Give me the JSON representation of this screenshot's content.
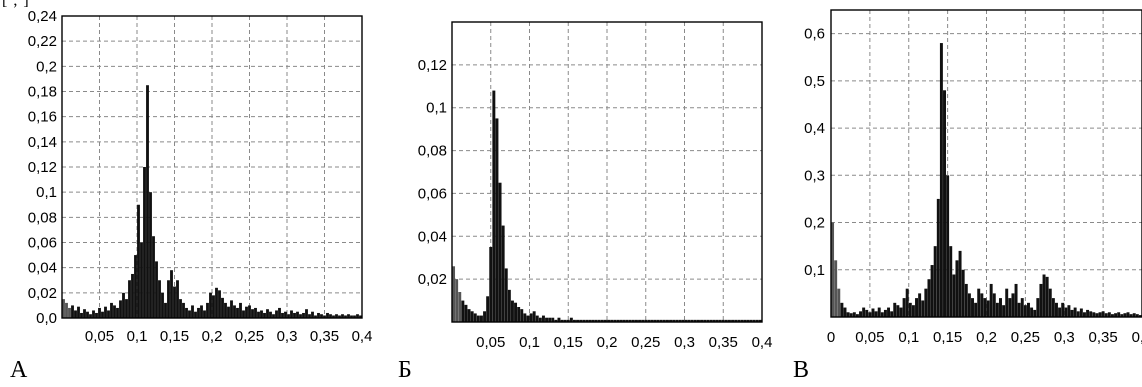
{
  "header_fragment": "[  ,  ]",
  "chart_data": [
    {
      "type": "bar",
      "panel_label": "А",
      "title": "",
      "xlabel": "",
      "ylabel": "",
      "xlim": [
        0,
        0.4
      ],
      "ylim": [
        0,
        0.24
      ],
      "grid": true,
      "x_ticks": [
        0.05,
        0.1,
        0.15,
        0.2,
        0.25,
        0.3,
        0.35,
        0.4
      ],
      "x_tick_labels": [
        "0,05",
        "0,1",
        "0,15",
        "0,2",
        "0,25",
        "0,3",
        "0,35",
        "0,4"
      ],
      "y_ticks": [
        0,
        0.02,
        0.04,
        0.06,
        0.08,
        0.1,
        0.12,
        0.14,
        0.16,
        0.18,
        0.2,
        0.22,
        0.24
      ],
      "y_tick_labels": [
        "0,0",
        "0,02",
        "0,04",
        "0,06",
        "0,08",
        "0,1",
        "0,12",
        "0,14",
        "0,16",
        "0,18",
        "0,2",
        "0,22",
        "0,24"
      ],
      "bar_color": "#111111",
      "lowfreq_color": "#555555",
      "x": [
        0.002,
        0.006,
        0.01,
        0.014,
        0.018,
        0.022,
        0.026,
        0.03,
        0.034,
        0.038,
        0.042,
        0.046,
        0.05,
        0.054,
        0.058,
        0.062,
        0.066,
        0.07,
        0.074,
        0.078,
        0.082,
        0.086,
        0.09,
        0.094,
        0.098,
        0.102,
        0.106,
        0.11,
        0.114,
        0.118,
        0.122,
        0.126,
        0.13,
        0.134,
        0.138,
        0.142,
        0.146,
        0.15,
        0.154,
        0.158,
        0.162,
        0.166,
        0.17,
        0.174,
        0.178,
        0.182,
        0.186,
        0.19,
        0.194,
        0.198,
        0.202,
        0.206,
        0.21,
        0.214,
        0.218,
        0.222,
        0.226,
        0.23,
        0.234,
        0.238,
        0.242,
        0.246,
        0.25,
        0.254,
        0.258,
        0.262,
        0.266,
        0.27,
        0.274,
        0.278,
        0.282,
        0.286,
        0.29,
        0.294,
        0.298,
        0.302,
        0.306,
        0.31,
        0.314,
        0.318,
        0.322,
        0.326,
        0.33,
        0.334,
        0.338,
        0.342,
        0.346,
        0.35,
        0.354,
        0.358,
        0.362,
        0.366,
        0.37,
        0.374,
        0.378,
        0.382,
        0.386,
        0.39,
        0.394,
        0.398
      ],
      "values": [
        0.015,
        0.012,
        0.008,
        0.01,
        0.006,
        0.009,
        0.004,
        0.007,
        0.005,
        0.003,
        0.006,
        0.004,
        0.008,
        0.005,
        0.009,
        0.006,
        0.012,
        0.01,
        0.008,
        0.014,
        0.02,
        0.015,
        0.03,
        0.035,
        0.05,
        0.09,
        0.06,
        0.12,
        0.185,
        0.1,
        0.065,
        0.045,
        0.03,
        0.02,
        0.012,
        0.03,
        0.038,
        0.025,
        0.03,
        0.015,
        0.012,
        0.008,
        0.006,
        0.01,
        0.005,
        0.008,
        0.01,
        0.006,
        0.012,
        0.02,
        0.018,
        0.024,
        0.022,
        0.016,
        0.012,
        0.009,
        0.014,
        0.01,
        0.008,
        0.012,
        0.006,
        0.009,
        0.01,
        0.007,
        0.008,
        0.005,
        0.006,
        0.004,
        0.007,
        0.005,
        0.003,
        0.006,
        0.008,
        0.004,
        0.005,
        0.003,
        0.006,
        0.004,
        0.005,
        0.003,
        0.004,
        0.007,
        0.003,
        0.005,
        0.002,
        0.004,
        0.003,
        0.002,
        0.004,
        0.003,
        0.002,
        0.003,
        0.002,
        0.003,
        0.002,
        0.003,
        0.002,
        0.002,
        0.003,
        0.002
      ]
    },
    {
      "type": "bar",
      "panel_label": "Б",
      "title": "",
      "xlabel": "",
      "ylabel": "",
      "xlim": [
        0,
        0.4
      ],
      "ylim": [
        0,
        0.14
      ],
      "grid": true,
      "x_ticks": [
        0.05,
        0.1,
        0.15,
        0.2,
        0.25,
        0.3,
        0.35,
        0.4
      ],
      "x_tick_labels": [
        "0,05",
        "0,1",
        "0,15",
        "0,2",
        "0,25",
        "0,3",
        "0,35",
        "0,4"
      ],
      "y_ticks": [
        0.02,
        0.04,
        0.06,
        0.08,
        0.1,
        0.12
      ],
      "y_tick_labels": [
        "0,02",
        "0,04",
        "0,06",
        "0,08",
        "0,1",
        "0,12"
      ],
      "bar_color": "#111111",
      "lowfreq_color": "#555555",
      "x": [
        0.002,
        0.006,
        0.01,
        0.014,
        0.018,
        0.022,
        0.026,
        0.03,
        0.034,
        0.038,
        0.042,
        0.046,
        0.05,
        0.054,
        0.058,
        0.062,
        0.066,
        0.07,
        0.074,
        0.078,
        0.082,
        0.086,
        0.09,
        0.094,
        0.098,
        0.102,
        0.106,
        0.11,
        0.114,
        0.118,
        0.122,
        0.126,
        0.13,
        0.134,
        0.138,
        0.142,
        0.146,
        0.15,
        0.154,
        0.158,
        0.162,
        0.166,
        0.17,
        0.174,
        0.178,
        0.182,
        0.186,
        0.19,
        0.194,
        0.198,
        0.202,
        0.206,
        0.21,
        0.214,
        0.218,
        0.222,
        0.226,
        0.23,
        0.234,
        0.238,
        0.242,
        0.246,
        0.25,
        0.254,
        0.258,
        0.262,
        0.266,
        0.27,
        0.274,
        0.278,
        0.282,
        0.286,
        0.29,
        0.294,
        0.298,
        0.302,
        0.306,
        0.31,
        0.314,
        0.318,
        0.322,
        0.326,
        0.33,
        0.334,
        0.338,
        0.342,
        0.346,
        0.35,
        0.354,
        0.358,
        0.362,
        0.366,
        0.37,
        0.374,
        0.378,
        0.382,
        0.386,
        0.39,
        0.394,
        0.398
      ],
      "values": [
        0.026,
        0.02,
        0.014,
        0.01,
        0.008,
        0.006,
        0.005,
        0.004,
        0.003,
        0.003,
        0.005,
        0.012,
        0.035,
        0.108,
        0.095,
        0.065,
        0.045,
        0.025,
        0.015,
        0.01,
        0.009,
        0.007,
        0.006,
        0.004,
        0.003,
        0.004,
        0.005,
        0.003,
        0.002,
        0.003,
        0.002,
        0.002,
        0.002,
        0.001,
        0.002,
        0.001,
        0.001,
        0.001,
        0.002,
        0.001,
        0.001,
        0.001,
        0.001,
        0.001,
        0.001,
        0.001,
        0.001,
        0.001,
        0.001,
        0.001,
        0.001,
        0.001,
        0.001,
        0.001,
        0.001,
        0.001,
        0.001,
        0.001,
        0.001,
        0.001,
        0.001,
        0.001,
        0.001,
        0.001,
        0.001,
        0.001,
        0.001,
        0.001,
        0.001,
        0.001,
        0.001,
        0.001,
        0.001,
        0.001,
        0.001,
        0.001,
        0.001,
        0.001,
        0.001,
        0.001,
        0.001,
        0.001,
        0.001,
        0.001,
        0.001,
        0.001,
        0.001,
        0.001,
        0.001,
        0.001,
        0.001,
        0.001,
        0.001,
        0.001,
        0.001,
        0.001,
        0.001,
        0.001,
        0.001,
        0.001
      ]
    },
    {
      "type": "bar",
      "panel_label": "В",
      "title": "",
      "xlabel": "",
      "ylabel": "",
      "xlim": [
        0,
        0.4
      ],
      "ylim": [
        0,
        0.65
      ],
      "grid": true,
      "x_ticks": [
        0,
        0.05,
        0.1,
        0.15,
        0.2,
        0.25,
        0.3,
        0.35,
        0.4
      ],
      "x_tick_labels": [
        "0",
        "0,05",
        "0,1",
        "0,15",
        "0,2",
        "0,25",
        "0,3",
        "0,35",
        "0,4"
      ],
      "y_ticks": [
        0.1,
        0.2,
        0.3,
        0.4,
        0.5,
        0.6
      ],
      "y_tick_labels": [
        "0,1",
        "0,2",
        "0,3",
        "0,4",
        "0,5",
        "0,6"
      ],
      "bar_color": "#111111",
      "lowfreq_color": "#555555",
      "x": [
        0.002,
        0.006,
        0.01,
        0.014,
        0.018,
        0.022,
        0.026,
        0.03,
        0.034,
        0.038,
        0.042,
        0.046,
        0.05,
        0.054,
        0.058,
        0.062,
        0.066,
        0.07,
        0.074,
        0.078,
        0.082,
        0.086,
        0.09,
        0.094,
        0.098,
        0.102,
        0.106,
        0.11,
        0.114,
        0.118,
        0.122,
        0.126,
        0.13,
        0.134,
        0.138,
        0.142,
        0.146,
        0.15,
        0.154,
        0.158,
        0.162,
        0.166,
        0.17,
        0.174,
        0.178,
        0.182,
        0.186,
        0.19,
        0.194,
        0.198,
        0.202,
        0.206,
        0.21,
        0.214,
        0.218,
        0.222,
        0.226,
        0.23,
        0.234,
        0.238,
        0.242,
        0.246,
        0.25,
        0.254,
        0.258,
        0.262,
        0.266,
        0.27,
        0.274,
        0.278,
        0.282,
        0.286,
        0.29,
        0.294,
        0.298,
        0.302,
        0.306,
        0.31,
        0.314,
        0.318,
        0.322,
        0.326,
        0.33,
        0.334,
        0.338,
        0.342,
        0.346,
        0.35,
        0.354,
        0.358,
        0.362,
        0.366,
        0.37,
        0.374,
        0.378,
        0.382,
        0.386,
        0.39,
        0.394,
        0.398
      ],
      "values": [
        0.2,
        0.12,
        0.06,
        0.03,
        0.02,
        0.01,
        0.008,
        0.01,
        0.006,
        0.012,
        0.02,
        0.015,
        0.01,
        0.018,
        0.012,
        0.02,
        0.01,
        0.015,
        0.02,
        0.012,
        0.03,
        0.025,
        0.02,
        0.04,
        0.06,
        0.03,
        0.025,
        0.04,
        0.05,
        0.035,
        0.06,
        0.08,
        0.11,
        0.15,
        0.25,
        0.58,
        0.48,
        0.3,
        0.15,
        0.09,
        0.12,
        0.14,
        0.1,
        0.07,
        0.05,
        0.04,
        0.03,
        0.06,
        0.05,
        0.04,
        0.035,
        0.07,
        0.05,
        0.03,
        0.04,
        0.025,
        0.06,
        0.04,
        0.05,
        0.07,
        0.03,
        0.04,
        0.025,
        0.03,
        0.02,
        0.015,
        0.04,
        0.07,
        0.09,
        0.085,
        0.06,
        0.04,
        0.03,
        0.02,
        0.03,
        0.02,
        0.025,
        0.015,
        0.02,
        0.012,
        0.018,
        0.01,
        0.015,
        0.012,
        0.01,
        0.008,
        0.01,
        0.012,
        0.008,
        0.01,
        0.006,
        0.008,
        0.01,
        0.006,
        0.008,
        0.01,
        0.006,
        0.008,
        0.006,
        0.004
      ]
    }
  ]
}
